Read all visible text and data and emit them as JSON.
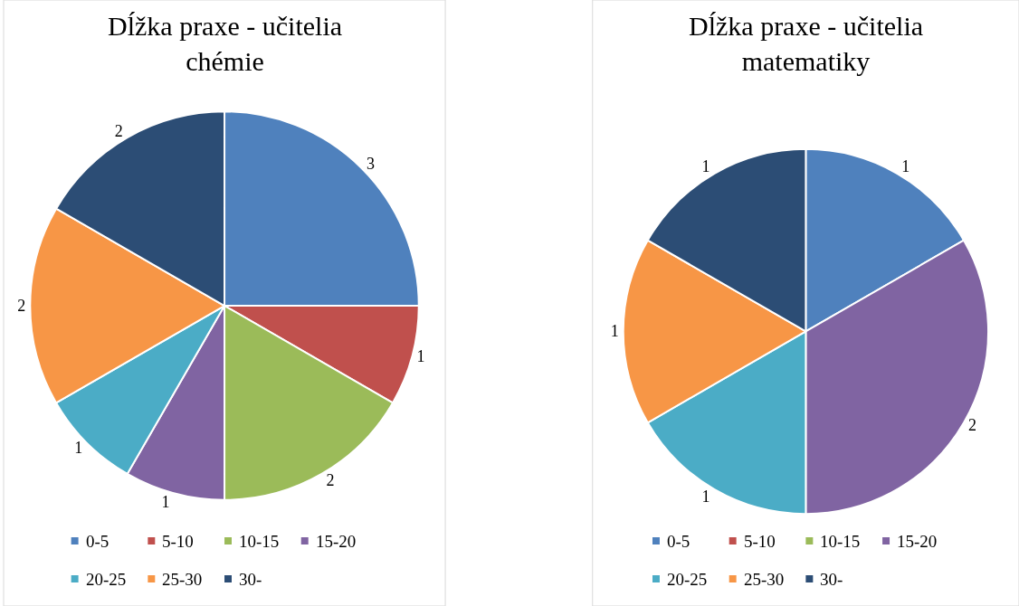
{
  "chart_data": [
    {
      "type": "pie",
      "title": "Dĺžka praxe - učitelia chémie",
      "categories": [
        "0-5",
        "5-10",
        "10-15",
        "15-20",
        "20-25",
        "25-30",
        "30-"
      ],
      "values": [
        3,
        1,
        2,
        1,
        1,
        2,
        2
      ],
      "colors": [
        "#4f81bd",
        "#c0504d",
        "#9bbb59",
        "#8064a2",
        "#4bacc6",
        "#f79646",
        "#2c4d75"
      ],
      "data_labels": true,
      "legend": "bottom"
    },
    {
      "type": "pie",
      "title": "Dĺžka praxe - učitelia matematiky",
      "categories": [
        "0-5",
        "5-10",
        "10-15",
        "15-20",
        "20-25",
        "25-30",
        "30-"
      ],
      "values": [
        1,
        0,
        0,
        2,
        1,
        1,
        1
      ],
      "colors": [
        "#4f81bd",
        "#c0504d",
        "#9bbb59",
        "#8064a2",
        "#4bacc6",
        "#f79646",
        "#2c4d75"
      ],
      "value_labels": [
        "1",
        null,
        null,
        "2",
        "1",
        "1",
        "1"
      ],
      "legend": "bottom"
    }
  ]
}
